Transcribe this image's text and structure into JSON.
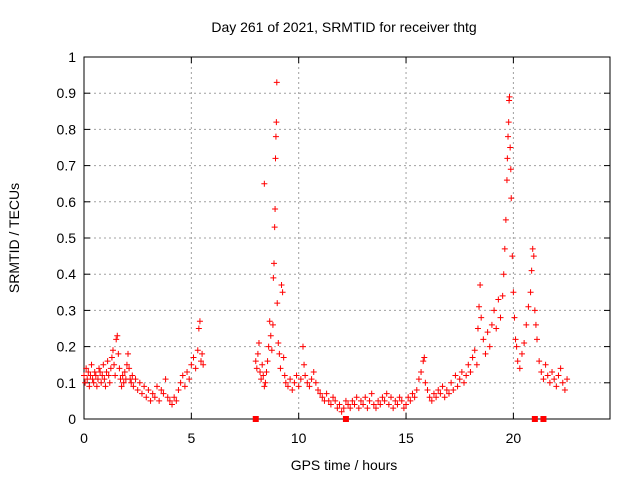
{
  "chart_data": {
    "type": "scatter",
    "title": "Day 261 of 2021, SRMTID for receiver thtg",
    "xlabel": "GPS time / hours",
    "ylabel": "SRMTID / TECUs",
    "xlim": [
      0,
      24.5
    ],
    "ylim": [
      0,
      1
    ],
    "xticks": [
      0,
      5,
      10,
      15,
      20
    ],
    "xtick_labels": [
      "0",
      "5",
      "10",
      "15",
      "20"
    ],
    "yticks": [
      0,
      0.1,
      0.2,
      0.3,
      0.4,
      0.5,
      0.6,
      0.7,
      0.8,
      0.9,
      1
    ],
    "ytick_labels": [
      "0",
      "0.1",
      "0.2",
      "0.3",
      "0.4",
      "0.5",
      "0.6",
      "0.7",
      "0.8",
      "0.9",
      "1"
    ],
    "grid": true,
    "color": "#ff0000",
    "marker": "+",
    "series": [
      {
        "name": "SRMTID",
        "points": [
          [
            0.0,
            0.12
          ],
          [
            0.05,
            0.1
          ],
          [
            0.1,
            0.14
          ],
          [
            0.15,
            0.11
          ],
          [
            0.2,
            0.13
          ],
          [
            0.25,
            0.09
          ],
          [
            0.3,
            0.12
          ],
          [
            0.35,
            0.15
          ],
          [
            0.4,
            0.11
          ],
          [
            0.45,
            0.1
          ],
          [
            0.5,
            0.13
          ],
          [
            0.55,
            0.12
          ],
          [
            0.6,
            0.09
          ],
          [
            0.65,
            0.11
          ],
          [
            0.7,
            0.14
          ],
          [
            0.75,
            0.13
          ],
          [
            0.8,
            0.1
          ],
          [
            0.85,
            0.12
          ],
          [
            0.9,
            0.15
          ],
          [
            0.95,
            0.11
          ],
          [
            1.0,
            0.09
          ],
          [
            1.05,
            0.13
          ],
          [
            1.1,
            0.16
          ],
          [
            1.15,
            0.12
          ],
          [
            1.2,
            0.1
          ],
          [
            1.25,
            0.14
          ],
          [
            1.3,
            0.17
          ],
          [
            1.35,
            0.19
          ],
          [
            1.4,
            0.15
          ],
          [
            1.45,
            0.12
          ],
          [
            1.5,
            0.22
          ],
          [
            1.55,
            0.23
          ],
          [
            1.6,
            0.18
          ],
          [
            1.65,
            0.14
          ],
          [
            1.7,
            0.11
          ],
          [
            1.75,
            0.09
          ],
          [
            1.8,
            0.12
          ],
          [
            1.85,
            0.1
          ],
          [
            1.9,
            0.13
          ],
          [
            1.95,
            0.11
          ],
          [
            2.0,
            0.15
          ],
          [
            2.05,
            0.18
          ],
          [
            2.1,
            0.14
          ],
          [
            2.15,
            0.11
          ],
          [
            2.2,
            0.1
          ],
          [
            2.25,
            0.12
          ],
          [
            2.3,
            0.09
          ],
          [
            2.4,
            0.11
          ],
          [
            2.5,
            0.08
          ],
          [
            2.6,
            0.1
          ],
          [
            2.7,
            0.07
          ],
          [
            2.8,
            0.09
          ],
          [
            2.9,
            0.06
          ],
          [
            3.0,
            0.08
          ],
          [
            3.1,
            0.05
          ],
          [
            3.2,
            0.07
          ],
          [
            3.3,
            0.06
          ],
          [
            3.4,
            0.09
          ],
          [
            3.5,
            0.05
          ],
          [
            3.6,
            0.08
          ],
          [
            3.7,
            0.07
          ],
          [
            3.8,
            0.11
          ],
          [
            3.9,
            0.06
          ],
          [
            4.0,
            0.05
          ],
          [
            4.1,
            0.04
          ],
          [
            4.2,
            0.06
          ],
          [
            4.3,
            0.05
          ],
          [
            4.4,
            0.08
          ],
          [
            4.5,
            0.1
          ],
          [
            4.6,
            0.12
          ],
          [
            4.7,
            0.09
          ],
          [
            4.8,
            0.13
          ],
          [
            4.9,
            0.11
          ],
          [
            5.0,
            0.15
          ],
          [
            5.1,
            0.17
          ],
          [
            5.2,
            0.14
          ],
          [
            5.3,
            0.19
          ],
          [
            5.35,
            0.25
          ],
          [
            5.4,
            0.27
          ],
          [
            5.45,
            0.16
          ],
          [
            5.5,
            0.18
          ],
          [
            5.55,
            0.15
          ],
          [
            8.0,
            0.16
          ],
          [
            8.05,
            0.14
          ],
          [
            8.1,
            0.18
          ],
          [
            8.15,
            0.21
          ],
          [
            8.2,
            0.13
          ],
          [
            8.25,
            0.11
          ],
          [
            8.3,
            0.15
          ],
          [
            8.35,
            0.12
          ],
          [
            8.4,
            0.09
          ],
          [
            8.45,
            0.1
          ],
          [
            8.5,
            0.13
          ],
          [
            8.55,
            0.16
          ],
          [
            8.6,
            0.2
          ],
          [
            8.65,
            0.27
          ],
          [
            8.7,
            0.23
          ],
          [
            8.75,
            0.19
          ],
          [
            8.8,
            0.26
          ],
          [
            8.82,
            0.39
          ],
          [
            8.85,
            0.43
          ],
          [
            8.88,
            0.53
          ],
          [
            8.9,
            0.58
          ],
          [
            8.92,
            0.72
          ],
          [
            8.94,
            0.78
          ],
          [
            8.96,
            0.82
          ],
          [
            8.98,
            0.93
          ],
          [
            8.4,
            0.65
          ],
          [
            9.0,
            0.32
          ],
          [
            9.05,
            0.21
          ],
          [
            9.1,
            0.18
          ],
          [
            9.15,
            0.14
          ],
          [
            9.2,
            0.37
          ],
          [
            9.25,
            0.35
          ],
          [
            9.3,
            0.17
          ],
          [
            9.35,
            0.12
          ],
          [
            9.4,
            0.1
          ],
          [
            9.5,
            0.09
          ],
          [
            9.6,
            0.11
          ],
          [
            9.7,
            0.08
          ],
          [
            9.8,
            0.1
          ],
          [
            9.9,
            0.12
          ],
          [
            10.0,
            0.09
          ],
          [
            10.1,
            0.11
          ],
          [
            10.2,
            0.2
          ],
          [
            10.25,
            0.15
          ],
          [
            10.3,
            0.12
          ],
          [
            10.4,
            0.1
          ],
          [
            10.5,
            0.09
          ],
          [
            10.6,
            0.11
          ],
          [
            10.7,
            0.13
          ],
          [
            10.8,
            0.1
          ],
          [
            10.9,
            0.08
          ],
          [
            11.0,
            0.07
          ],
          [
            11.1,
            0.06
          ],
          [
            11.2,
            0.05
          ],
          [
            11.3,
            0.07
          ],
          [
            11.4,
            0.05
          ],
          [
            11.5,
            0.04
          ],
          [
            11.6,
            0.06
          ],
          [
            11.7,
            0.05
          ],
          [
            11.8,
            0.03
          ],
          [
            11.9,
            0.04
          ],
          [
            12.0,
            0.02
          ],
          [
            12.1,
            0.03
          ],
          [
            12.2,
            0.05
          ],
          [
            12.3,
            0.04
          ],
          [
            12.4,
            0.03
          ],
          [
            12.5,
            0.05
          ],
          [
            12.6,
            0.04
          ],
          [
            12.7,
            0.06
          ],
          [
            12.8,
            0.03
          ],
          [
            12.9,
            0.05
          ],
          [
            13.0,
            0.04
          ],
          [
            13.1,
            0.06
          ],
          [
            13.2,
            0.03
          ],
          [
            13.3,
            0.05
          ],
          [
            13.4,
            0.07
          ],
          [
            13.5,
            0.04
          ],
          [
            13.6,
            0.03
          ],
          [
            13.7,
            0.05
          ],
          [
            13.8,
            0.04
          ],
          [
            13.9,
            0.06
          ],
          [
            14.0,
            0.05
          ],
          [
            14.1,
            0.07
          ],
          [
            14.2,
            0.04
          ],
          [
            14.3,
            0.06
          ],
          [
            14.4,
            0.03
          ],
          [
            14.5,
            0.05
          ],
          [
            14.6,
            0.04
          ],
          [
            14.7,
            0.06
          ],
          [
            14.8,
            0.05
          ],
          [
            14.9,
            0.03
          ],
          [
            15.0,
            0.04
          ],
          [
            15.1,
            0.06
          ],
          [
            15.2,
            0.05
          ],
          [
            15.3,
            0.07
          ],
          [
            15.4,
            0.06
          ],
          [
            15.5,
            0.08
          ],
          [
            15.6,
            0.11
          ],
          [
            15.7,
            0.13
          ],
          [
            15.8,
            0.16
          ],
          [
            15.85,
            0.17
          ],
          [
            15.9,
            0.1
          ],
          [
            16.0,
            0.08
          ],
          [
            16.1,
            0.06
          ],
          [
            16.2,
            0.05
          ],
          [
            16.3,
            0.07
          ],
          [
            16.4,
            0.06
          ],
          [
            16.5,
            0.08
          ],
          [
            16.6,
            0.07
          ],
          [
            16.7,
            0.09
          ],
          [
            16.8,
            0.06
          ],
          [
            16.9,
            0.08
          ],
          [
            17.0,
            0.07
          ],
          [
            17.1,
            0.1
          ],
          [
            17.2,
            0.08
          ],
          [
            17.3,
            0.12
          ],
          [
            17.4,
            0.09
          ],
          [
            17.5,
            0.11
          ],
          [
            17.6,
            0.13
          ],
          [
            17.7,
            0.1
          ],
          [
            17.8,
            0.12
          ],
          [
            17.9,
            0.15
          ],
          [
            18.0,
            0.13
          ],
          [
            18.1,
            0.17
          ],
          [
            18.2,
            0.19
          ],
          [
            18.3,
            0.15
          ],
          [
            18.35,
            0.25
          ],
          [
            18.4,
            0.31
          ],
          [
            18.45,
            0.37
          ],
          [
            18.5,
            0.28
          ],
          [
            18.6,
            0.22
          ],
          [
            18.7,
            0.18
          ],
          [
            18.8,
            0.24
          ],
          [
            18.9,
            0.2
          ],
          [
            19.0,
            0.26
          ],
          [
            19.1,
            0.3
          ],
          [
            19.2,
            0.25
          ],
          [
            19.3,
            0.33
          ],
          [
            19.4,
            0.28
          ],
          [
            19.5,
            0.34
          ],
          [
            19.55,
            0.4
          ],
          [
            19.6,
            0.47
          ],
          [
            19.65,
            0.55
          ],
          [
            19.7,
            0.66
          ],
          [
            19.72,
            0.72
          ],
          [
            19.75,
            0.78
          ],
          [
            19.78,
            0.82
          ],
          [
            19.8,
            0.88
          ],
          [
            19.82,
            0.89
          ],
          [
            19.85,
            0.75
          ],
          [
            19.88,
            0.69
          ],
          [
            19.9,
            0.61
          ],
          [
            19.95,
            0.45
          ],
          [
            20.0,
            0.35
          ],
          [
            20.05,
            0.28
          ],
          [
            20.1,
            0.22
          ],
          [
            20.15,
            0.2
          ],
          [
            20.2,
            0.16
          ],
          [
            20.3,
            0.14
          ],
          [
            20.4,
            0.18
          ],
          [
            20.5,
            0.21
          ],
          [
            20.6,
            0.26
          ],
          [
            20.7,
            0.31
          ],
          [
            20.8,
            0.35
          ],
          [
            20.85,
            0.41
          ],
          [
            20.9,
            0.47
          ],
          [
            20.95,
            0.45
          ],
          [
            21.0,
            0.3
          ],
          [
            21.05,
            0.26
          ],
          [
            21.1,
            0.22
          ],
          [
            21.2,
            0.16
          ],
          [
            21.3,
            0.13
          ],
          [
            21.4,
            0.11
          ],
          [
            21.5,
            0.15
          ],
          [
            21.6,
            0.12
          ],
          [
            21.7,
            0.1
          ],
          [
            21.8,
            0.13
          ],
          [
            21.9,
            0.11
          ],
          [
            22.0,
            0.09
          ],
          [
            22.1,
            0.12
          ],
          [
            22.2,
            0.14
          ],
          [
            22.3,
            0.1
          ],
          [
            22.4,
            0.08
          ],
          [
            22.5,
            0.11
          ]
        ]
      }
    ],
    "axis_marks": [
      8.0,
      12.2,
      21.0,
      21.4
    ]
  }
}
